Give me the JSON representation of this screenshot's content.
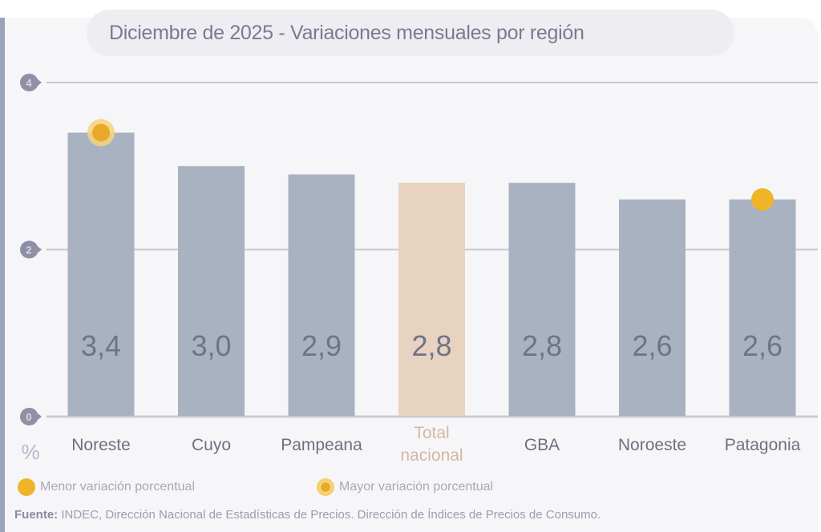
{
  "title": "Diciembre de 2025 - Variaciones mensuales por región",
  "legend": {
    "min_label": "Menor variación porcentual",
    "max_label": "Mayor variación porcentual"
  },
  "source": {
    "label": "Fuente:",
    "text": "INDEC, Dirección Nacional de Estadísticas de Precios. Dirección de Índices de Precios de Consumo."
  },
  "colors": {
    "bar": "#a9b2c0",
    "total_bar": "#e8d2c0",
    "marker": "#f0b429",
    "value_text": "#6e7488",
    "grid": "#c9c9d1",
    "axis_badge": "#8f90a6"
  },
  "chart_data": {
    "type": "bar",
    "title": "Diciembre de 2025 - Variaciones mensuales por región",
    "xlabel": "",
    "ylabel": "%",
    "ylim": [
      0,
      4
    ],
    "yticks": [
      0,
      2,
      4
    ],
    "grid": true,
    "legend_position": "bottom-left",
    "categories": [
      "Noreste",
      "Cuyo",
      "Pampeana",
      "Total nacional",
      "GBA",
      "Noroeste",
      "Patagonia"
    ],
    "category_lines": [
      [
        "Noreste"
      ],
      [
        "Cuyo"
      ],
      [
        "Pampeana"
      ],
      [
        "Total",
        "nacional"
      ],
      [
        "GBA"
      ],
      [
        "Noroeste"
      ],
      [
        "Patagonia"
      ]
    ],
    "values": [
      3.4,
      3.0,
      2.9,
      2.8,
      2.8,
      2.6,
      2.6
    ],
    "value_labels": [
      "3,4",
      "3,0",
      "2,9",
      "2,8",
      "2,8",
      "2,6",
      "2,6"
    ],
    "highlight": {
      "total_index": 3,
      "max_index": 0,
      "min_index": 6
    }
  }
}
